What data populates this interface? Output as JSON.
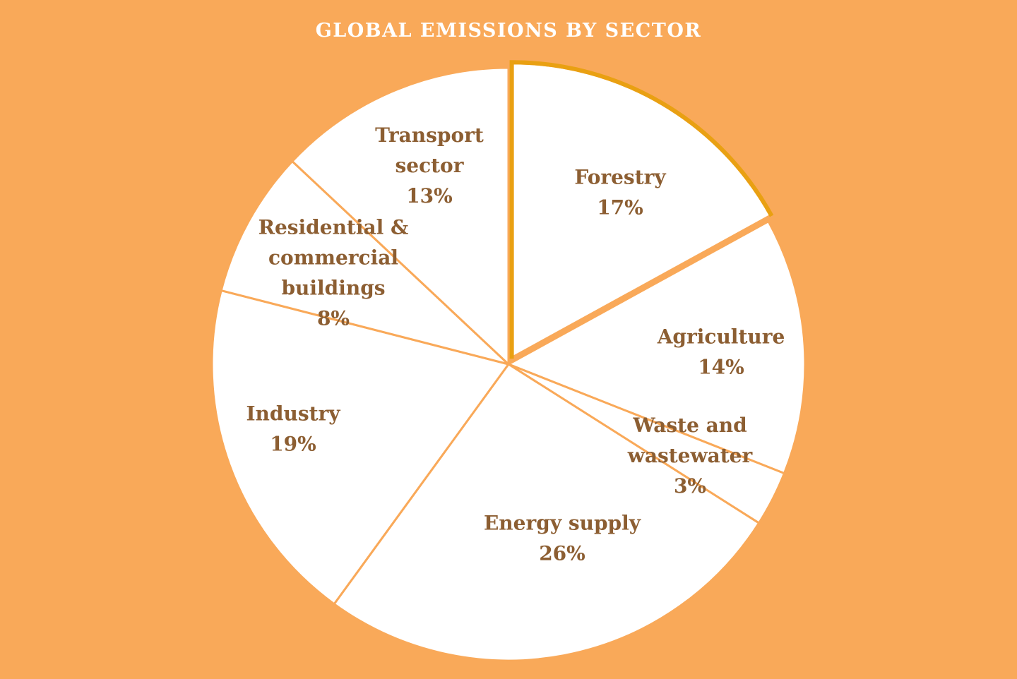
{
  "chart_data": {
    "type": "pie",
    "title": "GLOBAL EMISSIONS BY SECTOR",
    "slices": [
      {
        "label_lines": [
          "Forestry"
        ],
        "value_label": "17%",
        "value": 17
      },
      {
        "label_lines": [
          "Agriculture"
        ],
        "value_label": "14%",
        "value": 14
      },
      {
        "label_lines": [
          "Waste and",
          "wastewater"
        ],
        "value_label": "3%",
        "value": 3
      },
      {
        "label_lines": [
          "Energy supply"
        ],
        "value_label": "26%",
        "value": 26
      },
      {
        "label_lines": [
          "Industry"
        ],
        "value_label": "19%",
        "value": 19
      },
      {
        "label_lines": [
          "Residential &",
          "commercial",
          "buildings"
        ],
        "value_label": "8%",
        "value": 8
      },
      {
        "label_lines": [
          "Transport",
          "sector"
        ],
        "value_label": "13%",
        "value": 13
      }
    ]
  },
  "colors": {
    "background": "#F9A959",
    "slice_fill": "#ffffff",
    "slice_border": "#F9A959",
    "highlight_border": "#E9A012",
    "label": "#8C5E32",
    "title": "#ffffff"
  }
}
